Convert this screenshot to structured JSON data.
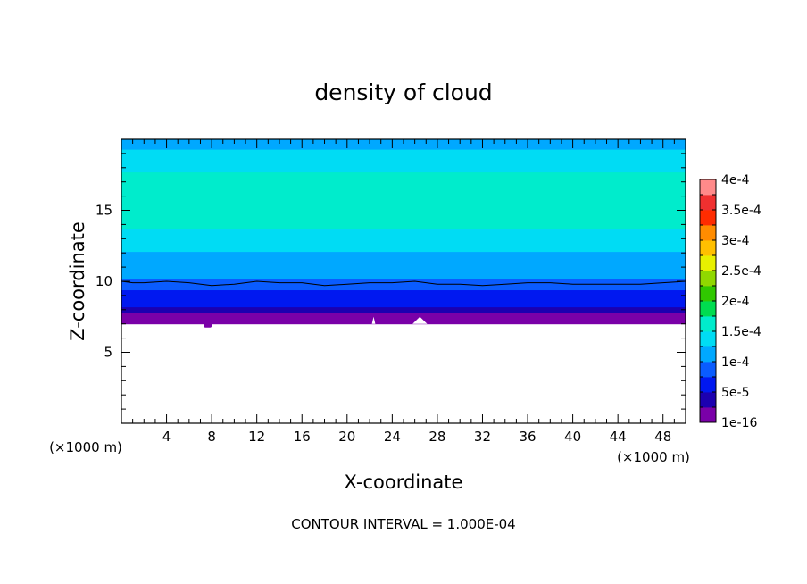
{
  "chart_data": {
    "type": "heatmap",
    "title": "density of cloud",
    "xlabel": "X-coordinate",
    "ylabel": "Z-coordinate",
    "x_unit": "(×1000 m)",
    "y_unit": "(×1000 m)",
    "xlim": [
      0,
      50
    ],
    "ylim": [
      0,
      20
    ],
    "x_ticks": [
      4,
      8,
      12,
      16,
      20,
      24,
      28,
      32,
      36,
      40,
      44,
      48
    ],
    "y_ticks": [
      5,
      10,
      15
    ],
    "contour_interval_label": "CONTOUR INTERVAL = 1.000E-04",
    "colorbar": {
      "min": 0,
      "max": 0.0004,
      "tick_values": [
        1e-16,
        5e-05,
        0.0001,
        0.00015,
        0.0002,
        0.00025,
        0.0003,
        0.00035,
        0.0004
      ],
      "tick_labels": [
        "1e-16",
        "5e-5",
        "1e-4",
        "1.5e-4",
        "2e-4",
        "2.5e-4",
        "3e-4",
        "3.5e-4",
        "4e-4"
      ],
      "level_step": 2.5e-05,
      "colors": [
        "#7a00a8",
        "#1c00b0",
        "#0018f0",
        "#0a5cff",
        "#00a8ff",
        "#00dcf4",
        "#00eccc",
        "#00dc50",
        "#30c800",
        "#90d800",
        "#e8f000",
        "#ffc000",
        "#ff8c00",
        "#ff2c00",
        "#f03030",
        "#ff8a8a"
      ]
    },
    "profile": {
      "z": [
        7.0,
        7.4,
        7.8,
        8.2,
        8.6,
        9.0,
        9.4,
        9.8,
        10.2,
        10.8,
        11.4,
        12.1,
        12.9,
        13.7,
        16.9,
        17.7,
        18.5,
        19.3,
        20.0
      ],
      "density": [
        1e-05,
        2e-05,
        3.5e-05,
        5e-05,
        6.2e-05,
        7.2e-05,
        8.2e-05,
        9.2e-05,
        0.0001,
        0.00011,
        0.00012,
        0.00013,
        0.00014,
        0.000152,
        0.000152,
        0.00014,
        0.00013,
        0.00012,
        0.00011
      ]
    },
    "cloud_base_z": 7.0,
    "contour_line": {
      "level": 0.0001,
      "x": [
        0,
        1,
        2,
        4,
        6,
        8,
        10,
        12,
        14,
        16,
        18,
        20,
        22,
        24,
        26,
        28,
        30,
        32,
        34,
        36,
        38,
        40,
        42,
        44,
        46,
        48,
        50
      ],
      "z": [
        10.0,
        9.9,
        9.9,
        10.0,
        9.9,
        9.7,
        9.8,
        10.0,
        9.9,
        9.9,
        9.7,
        9.8,
        9.9,
        9.9,
        10.0,
        9.8,
        9.8,
        9.7,
        9.8,
        9.9,
        9.9,
        9.8,
        9.8,
        9.8,
        9.8,
        9.9,
        10.0
      ]
    },
    "grid": false,
    "legend": "right colorbar"
  }
}
